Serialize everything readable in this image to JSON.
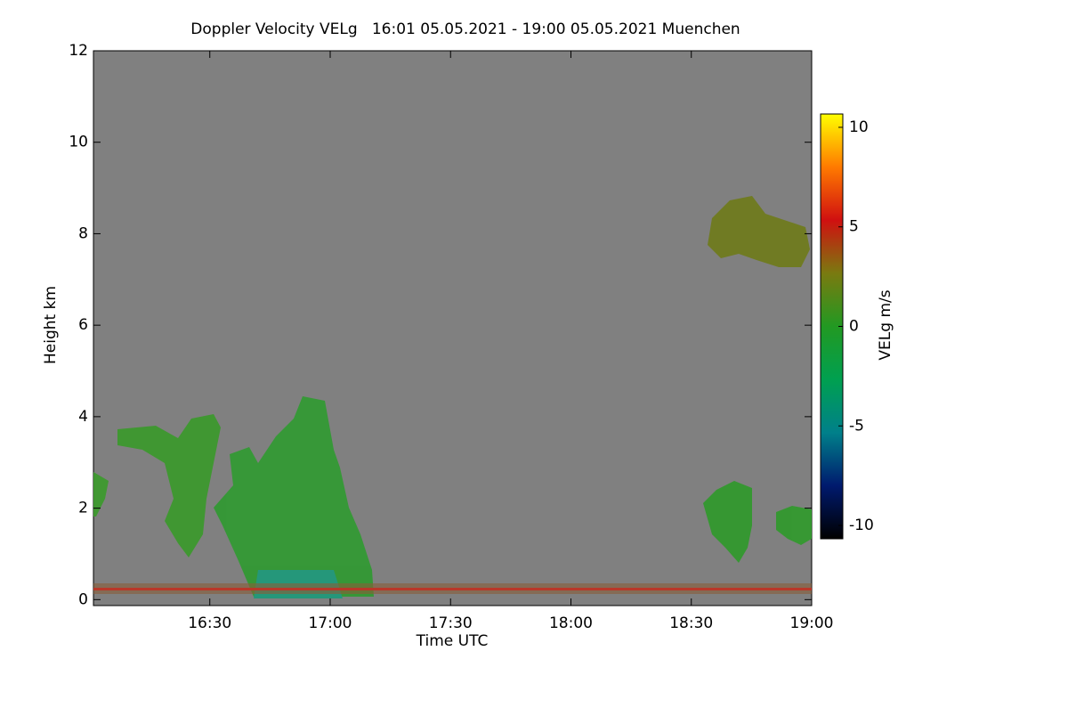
{
  "chart_data": {
    "type": "heatmap",
    "title": "Doppler Velocity VELg   16:01 05.05.2021 - 19:00 05.05.2021 Muenchen",
    "x_label": "Time UTC",
    "y_label": "Height km",
    "xlim": [
      16.0167,
      19.0
    ],
    "xticks": [
      {
        "value": 16.5,
        "label": "16:30"
      },
      {
        "value": 17.0,
        "label": "17:00"
      },
      {
        "value": 17.5,
        "label": "17:30"
      },
      {
        "value": 18.0,
        "label": "18:00"
      },
      {
        "value": 18.5,
        "label": "18:30"
      },
      {
        "value": 19.0,
        "label": "19:00"
      }
    ],
    "ylim": [
      -0.13,
      12
    ],
    "yticks": [
      0,
      2,
      4,
      6,
      8,
      10,
      12
    ],
    "background": "#808080",
    "colorbar": {
      "label": "VELg m/s",
      "clim": [
        -10.67,
        10.67
      ],
      "ticks": [
        10,
        5,
        0,
        -5,
        -10
      ],
      "colors": [
        "#000000",
        "#001a6e",
        "#00808a",
        "#00a050",
        "#229922",
        "#7a7a10",
        "#d01010",
        "#ff7a00",
        "#ffff00"
      ]
    }
  }
}
